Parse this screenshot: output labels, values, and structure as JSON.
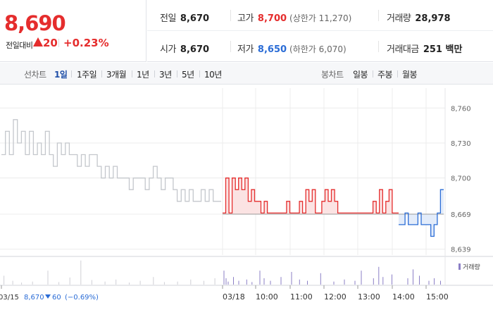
{
  "quote": {
    "price": "8,690",
    "change_label": "전일대비",
    "change_amount": "20",
    "change_percent": "+0.23%",
    "prev_close_label": "전일",
    "prev_close": "8,670",
    "open_label": "시가",
    "open": "8,670",
    "high_label": "고가",
    "high": "8,700",
    "upper_limit": "(상한가 11,270)",
    "low_label": "저가",
    "low": "8,650",
    "lower_limit": "(하한가 6,070)",
    "volume_label": "거래량",
    "volume": "28,978",
    "value_label": "거래대금",
    "value": "251 백만"
  },
  "periods": {
    "label": "선차트",
    "items": [
      "1일",
      "1주일",
      "3개월",
      "1년",
      "3년",
      "5년",
      "10년"
    ],
    "active": "1일"
  },
  "candles": {
    "label": "봉차트",
    "items": [
      "일봉",
      "주봉",
      "월봉"
    ]
  },
  "colors": {
    "up": "#e52d2d",
    "down": "#2a6cd6",
    "prev": "#c4c7cc",
    "volume": "#8b7fc6"
  },
  "chart_data": {
    "type": "line",
    "ylim": [
      8634,
      8768
    ],
    "y_ticks": [
      "8,760",
      "8,730",
      "8,700",
      "8,669",
      "8,639"
    ],
    "y_tick_values": [
      8760,
      8730,
      8700,
      8669,
      8639
    ],
    "baseline": 8669,
    "x_tick_labels": [
      "03/15",
      "03/18",
      "10:00",
      "11:00",
      "12:00",
      "13:00",
      "14:00",
      "15:00"
    ],
    "prev_day_label": "03/15",
    "prev_close": "8,670",
    "prev_change": "60",
    "prev_change_pct": "(−0.69%)",
    "legend": "거래량",
    "series": [
      {
        "values": [
          8720,
          8740,
          8720,
          8750,
          8730,
          8740,
          8720,
          8740,
          8720,
          8730,
          8720,
          8740,
          8720,
          8710,
          8730,
          8720,
          8730,
          8720,
          8720,
          8710,
          8720,
          8710,
          8720,
          8720,
          8710,
          8700,
          8710,
          8700,
          8710,
          8700,
          8700,
          8700,
          8690,
          8700,
          8700,
          8700,
          8690,
          8700,
          8710,
          8700,
          8690,
          8700,
          8700,
          8690,
          8680,
          8690,
          8680,
          8690,
          8680,
          8680,
          8690,
          8680,
          8690,
          8680,
          8680
        ]
      },
      {
        "values": [
          8670,
          8700,
          8670,
          8700,
          8690,
          8700,
          8690,
          8700,
          8680,
          8690,
          8680,
          8680,
          8670,
          8680,
          8670,
          8670,
          8670,
          8670,
          8670,
          8670,
          8680,
          8670,
          8670,
          8670,
          8680,
          8670,
          8690,
          8680,
          8690,
          8670,
          8670,
          8680,
          8690,
          8680,
          8690,
          8680,
          8670,
          8670,
          8670,
          8670,
          8670,
          8670,
          8670,
          8670,
          8670,
          8670,
          8670,
          8680,
          8670,
          8690,
          8670,
          8680,
          8690,
          8670,
          8670
        ]
      },
      {
        "values": [
          8660,
          8660,
          8670,
          8660,
          8660,
          8660,
          8670,
          8660,
          8660,
          8660,
          8650,
          8660,
          8670,
          8690
        ]
      }
    ],
    "volume": [
      {
        "x": 0.01,
        "v": 0.35
      },
      {
        "x": 0.05,
        "v": 0.15
      },
      {
        "x": 0.09,
        "v": 0.08
      },
      {
        "x": 0.14,
        "v": 0.12
      },
      {
        "x": 0.21,
        "v": 0.55
      },
      {
        "x": 0.26,
        "v": 0.1
      },
      {
        "x": 0.31,
        "v": 0.28
      },
      {
        "x": 0.36,
        "v": 0.95
      },
      {
        "x": 0.41,
        "v": 0.18
      },
      {
        "x": 0.47,
        "v": 0.12
      },
      {
        "x": 0.52,
        "v": 0.2
      },
      {
        "x": 0.58,
        "v": 0.08
      },
      {
        "x": 0.63,
        "v": 0.15
      },
      {
        "x": 0.69,
        "v": 0.3
      },
      {
        "x": 0.74,
        "v": 0.1
      },
      {
        "x": 0.8,
        "v": 0.12
      },
      {
        "x": 0.86,
        "v": 0.2
      },
      {
        "x": 0.92,
        "v": 0.15
      },
      {
        "x": 0.97,
        "v": 0.25
      },
      {
        "x": 1.02,
        "v": 0.55
      },
      {
        "x": 1.06,
        "v": 0.25
      },
      {
        "x": 1.1,
        "v": 0.12
      },
      {
        "x": 1.2,
        "v": 0.3
      },
      {
        "x": 1.3,
        "v": 0.15
      },
      {
        "x": 1.45,
        "v": 0.2
      },
      {
        "x": 1.55,
        "v": 0.1
      },
      {
        "x": 1.7,
        "v": 0.55
      },
      {
        "x": 1.78,
        "v": 0.25
      },
      {
        "x": 1.9,
        "v": 0.15
      },
      {
        "x": 2.1,
        "v": 0.3
      },
      {
        "x": 2.3,
        "v": 0.5
      },
      {
        "x": 2.45,
        "v": 0.2
      },
      {
        "x": 2.6,
        "v": 0.15
      },
      {
        "x": 2.85,
        "v": 0.45
      },
      {
        "x": 3.1,
        "v": 0.12
      },
      {
        "x": 3.3,
        "v": 0.2
      },
      {
        "x": 3.5,
        "v": 0.15
      },
      {
        "x": 3.62,
        "v": 0.55
      },
      {
        "x": 3.85,
        "v": 0.25
      },
      {
        "x": 3.95,
        "v": 0.7
      },
      {
        "x": 4.03,
        "v": 0.3
      },
      {
        "x": 4.2,
        "v": 0.4
      },
      {
        "x": 4.5,
        "v": 0.25
      },
      {
        "x": 4.6,
        "v": 0.6
      },
      {
        "x": 4.72,
        "v": 0.35
      },
      {
        "x": 4.9,
        "v": 0.15
      },
      {
        "x": 5.0,
        "v": 0.25
      },
      {
        "x": 5.12,
        "v": 0.15
      }
    ]
  }
}
